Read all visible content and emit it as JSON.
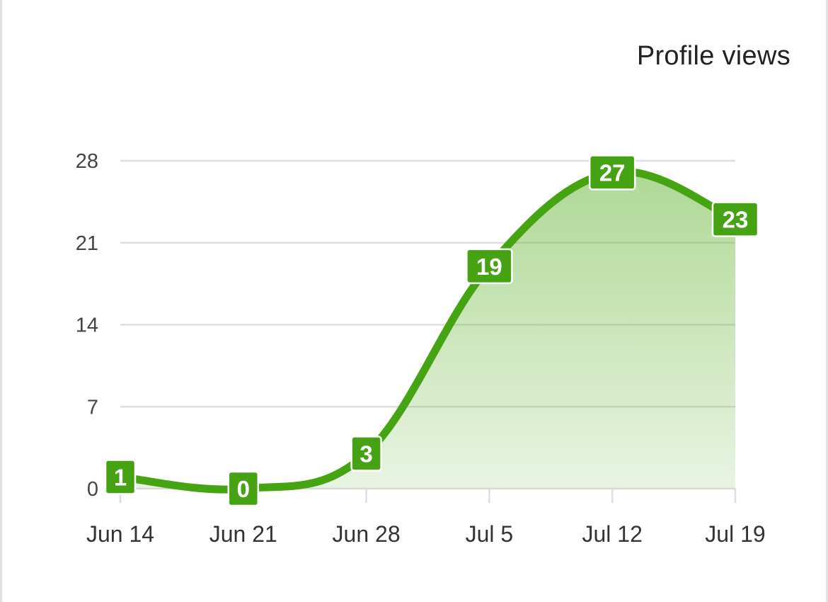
{
  "chart_data": {
    "type": "area",
    "title": "Profile views",
    "categories": [
      "Jun 14",
      "Jun 21",
      "Jun 28",
      "Jul 5",
      "Jul 12",
      "Jul 19"
    ],
    "series": [
      {
        "name": "Profile views",
        "values": [
          1,
          0,
          3,
          19,
          27,
          23
        ]
      }
    ],
    "yticks": [
      0,
      7,
      14,
      21,
      28
    ],
    "ylim": [
      0,
      28
    ],
    "grid": true,
    "legend": "none",
    "data_labels": true,
    "smooth": true
  },
  "colors": {
    "line": "#44a412",
    "label_bg": "#45a313",
    "grid": "#dedede",
    "fill": "#6cb83f"
  }
}
